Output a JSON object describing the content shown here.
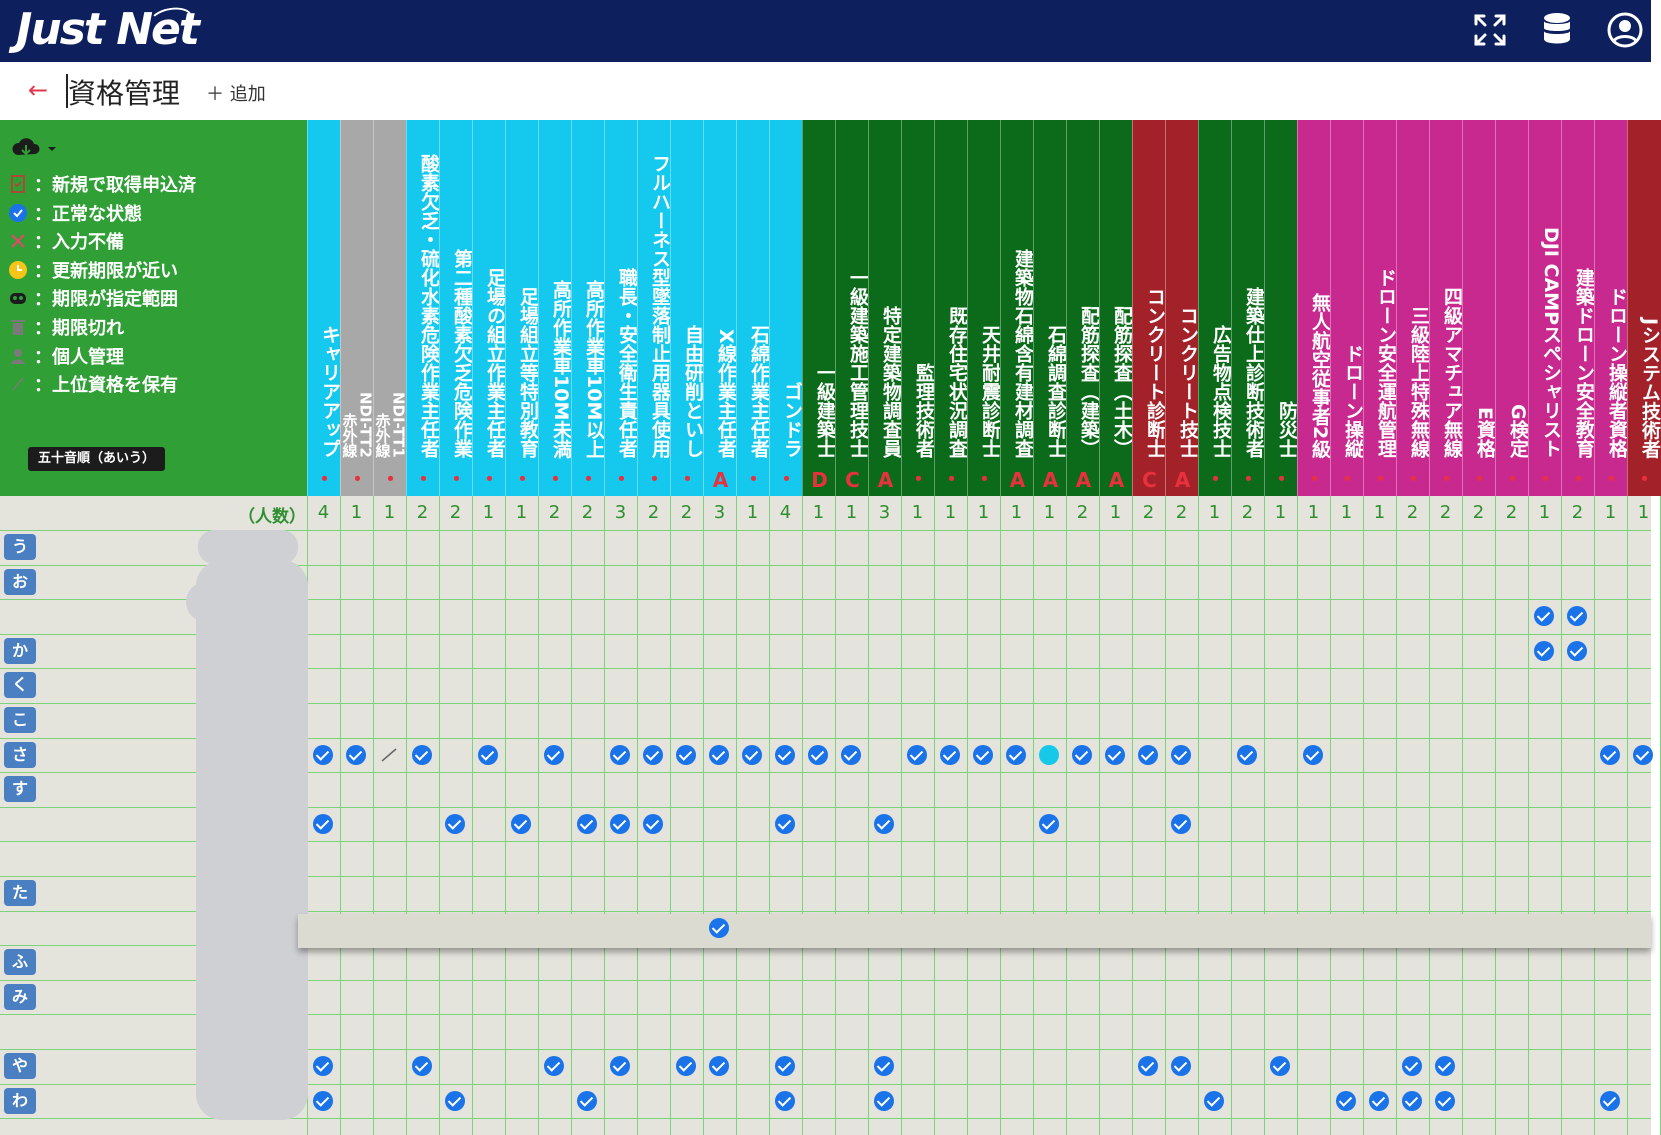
{
  "app": {
    "logo": "Just Net"
  },
  "topbar": {
    "icons": [
      "expand-icon",
      "database-icon",
      "account-icon"
    ]
  },
  "header": {
    "title": "資格管理",
    "add_label": "＋ 追加",
    "back_icon": "arrow-left-icon"
  },
  "legend": {
    "items": [
      {
        "icon": "new-application-icon",
        "label": "：新規で取得申込済"
      },
      {
        "icon": "check-circle-icon",
        "label": "：正常な状態"
      },
      {
        "icon": "incomplete-icon",
        "label": "：入力不備"
      },
      {
        "icon": "clock-icon",
        "label": "：更新期限が近い"
      },
      {
        "icon": "range-icon",
        "label": "：期限が指定範囲"
      },
      {
        "icon": "trash-icon",
        "label": "：期限切れ"
      },
      {
        "icon": "person-icon",
        "label": "：個人管理"
      },
      {
        "icon": "slash-icon",
        "label": "：上位資格を保有"
      }
    ],
    "sort_label": "五十音順（あいう）",
    "download_icon": "cloud-download-icon"
  },
  "count_label": "（人数）",
  "colors": {
    "cyan": "#14c8ee",
    "gray": "#a8a8a8",
    "darkgreen": "#0b6b1a",
    "darkred": "#a3222a",
    "magenta": "#c8298f",
    "check": "#1a73e8"
  },
  "columns": [
    {
      "name": "キャリアアップ",
      "rank": "・",
      "count": "4",
      "color": "cyan"
    },
    {
      "name": "赤外線",
      "rank": "・",
      "count": "1",
      "color": "gray"
    },
    {
      "name": "NDI-TT2",
      "rank": "",
      "count": "",
      "color": "gray"
    },
    {
      "name": "赤外線",
      "rank": "・",
      "count": "1",
      "color": "gray"
    },
    {
      "name": "NDI-TT1",
      "rank": "",
      "count": "",
      "color": "gray"
    },
    {
      "name": "酸素欠乏・硫化水素危険作業主任者",
      "rank": "・",
      "count": "2",
      "color": "cyan"
    },
    {
      "name": "第二種酸素欠乏危険作業",
      "rank": "・",
      "count": "2",
      "color": "cyan"
    },
    {
      "name": "足場の組立作業主任者",
      "rank": "・",
      "count": "1",
      "color": "cyan"
    },
    {
      "name": "足場組立等特別教育",
      "rank": "・",
      "count": "1",
      "color": "cyan"
    },
    {
      "name": "高所作業車10M未満",
      "rank": "・",
      "count": "2",
      "color": "cyan"
    },
    {
      "name": "高所作業車10M以上",
      "rank": "・",
      "count": "2",
      "color": "cyan"
    },
    {
      "name": "職長・安全衛生責任者",
      "rank": "・",
      "count": "3",
      "color": "cyan"
    },
    {
      "name": "フルハーネス型墜落制止用器具使用",
      "rank": "・",
      "count": "2",
      "color": "cyan"
    },
    {
      "name": "自由研削といし",
      "rank": "・",
      "count": "2",
      "color": "cyan"
    },
    {
      "name": "X線作業主任者",
      "rank": "A",
      "count": "3",
      "color": "cyan"
    },
    {
      "name": "石綿作業主任者",
      "rank": "・",
      "count": "1",
      "color": "cyan"
    },
    {
      "name": "ゴンドラ",
      "rank": "・",
      "count": "4",
      "color": "cyan"
    },
    {
      "name": "一級建築士",
      "rank": "D",
      "count": "1",
      "color": "darkgreen"
    },
    {
      "name": "一級建築施工管理技士",
      "rank": "C",
      "count": "1",
      "color": "darkgreen"
    },
    {
      "name": "特定建築物調査員",
      "rank": "A",
      "count": "3",
      "color": "darkgreen"
    },
    {
      "name": "監理技術者",
      "rank": "・",
      "count": "1",
      "color": "darkgreen"
    },
    {
      "name": "既存住宅状況調査",
      "rank": "・",
      "count": "1",
      "color": "darkgreen"
    },
    {
      "name": "天井耐震診断士",
      "rank": "・",
      "count": "1",
      "color": "darkgreen"
    },
    {
      "name": "建築物石綿含有建材調査",
      "rank": "A",
      "count": "1",
      "color": "darkgreen"
    },
    {
      "name": "石綿調査診断士",
      "rank": "A",
      "count": "1",
      "color": "darkgreen"
    },
    {
      "name": "配筋探査（建築）",
      "rank": "A",
      "count": "2",
      "color": "darkgreen"
    },
    {
      "name": "配筋探査（土木）",
      "rank": "A",
      "count": "1",
      "color": "darkgreen"
    },
    {
      "name": "コンクリート診断士",
      "rank": "C",
      "count": "2",
      "color": "darkred"
    },
    {
      "name": "コンクリート技士",
      "rank": "A",
      "count": "2",
      "color": "darkred"
    },
    {
      "name": "広告物点検技士",
      "rank": "・",
      "count": "1",
      "color": "darkgreen"
    },
    {
      "name": "建築仕上診断技術者",
      "rank": "・",
      "count": "2",
      "color": "darkgreen"
    },
    {
      "name": "防災士",
      "rank": "・",
      "count": "1",
      "color": "darkgreen"
    },
    {
      "name": "無人航空従事者2級",
      "rank": "・",
      "count": "1",
      "color": "magenta"
    },
    {
      "name": "ドローン操縦",
      "rank": "・",
      "count": "1",
      "color": "magenta"
    },
    {
      "name": "ドローン安全運航管理",
      "rank": "・",
      "count": "1",
      "color": "magenta"
    },
    {
      "name": "三級陸上特殊無線",
      "rank": "・",
      "count": "2",
      "color": "magenta"
    },
    {
      "name": "四級アマチュア無線",
      "rank": "・",
      "count": "2",
      "color": "magenta"
    },
    {
      "name": "E資格",
      "rank": "・",
      "count": "2",
      "color": "magenta"
    },
    {
      "name": "G検定",
      "rank": "・",
      "count": "2",
      "color": "magenta"
    },
    {
      "name": "DJI CAMPスペシャリスト",
      "rank": "・",
      "count": "1",
      "color": "magenta"
    },
    {
      "name": "建築ドローン安全教育",
      "rank": "・",
      "count": "2",
      "color": "magenta"
    },
    {
      "name": "ドローン操縦者資格",
      "rank": "・",
      "count": "1",
      "color": "magenta"
    },
    {
      "name": "Jシステム技術者",
      "rank": "・",
      "count": "1",
      "color": "darkred"
    }
  ],
  "rows": [
    {
      "kana": "う"
    },
    {
      "kana": "お"
    },
    {
      "kana": ""
    },
    {
      "kana": "か"
    },
    {
      "kana": "く"
    },
    {
      "kana": "こ"
    },
    {
      "kana": "さ"
    },
    {
      "kana": "す"
    },
    {
      "kana": ""
    },
    {
      "kana": ""
    },
    {
      "kana": "た"
    },
    {
      "kana": ""
    },
    {
      "kana": "ふ"
    },
    {
      "kana": "み"
    },
    {
      "kana": ""
    },
    {
      "kana": "や"
    },
    {
      "kana": "わ"
    }
  ]
}
